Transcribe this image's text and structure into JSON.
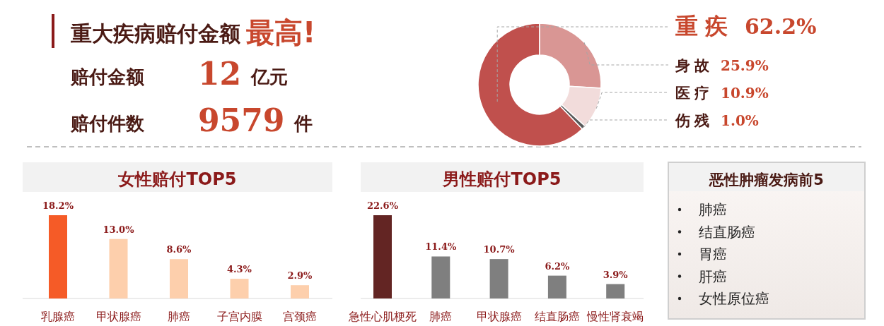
{
  "chart_data": [
    {
      "type": "other",
      "title": "重大疾病赔付金额",
      "annotations": [
        "最高!",
        "赔付金额",
        "12",
        "亿元",
        "赔付件数",
        "9579",
        "件"
      ]
    },
    {
      "type": "donut",
      "categories": [
        "重疾",
        "身故",
        "医疗",
        "伤残"
      ],
      "values": [
        62.2,
        25.9,
        10.9,
        1.0
      ],
      "colors": [
        "#c0504d",
        "#d99694",
        "#f2dcdb",
        "#595959"
      ],
      "value_labels": [
        "62.2%",
        "25.9%",
        "10.9%",
        "1.0%"
      ]
    },
    {
      "type": "bar",
      "title": "女性赔付TOP5",
      "categories": [
        "乳腺癌",
        "甲状腺癌",
        "肺癌",
        "子宫内膜",
        "宫颈癌"
      ],
      "values": [
        18.2,
        13.0,
        8.6,
        4.3,
        2.9
      ],
      "colors": [
        "#f55b27",
        "#fdcfac",
        "#fdcfac",
        "#fdcfac",
        "#fdcfac"
      ],
      "value_labels": [
        "18.2%",
        "13.0%",
        "8.6%",
        "4.3%",
        "2.9%"
      ]
    },
    {
      "type": "bar",
      "title": "男性赔付TOP5",
      "categories": [
        "急性心肌梗死",
        "肺癌",
        "甲状腺癌",
        "结直肠癌",
        "慢性肾衰竭"
      ],
      "values": [
        22.6,
        11.4,
        10.7,
        6.2,
        3.9
      ],
      "colors": [
        "#632523",
        "#7f7f7f",
        "#7f7f7f",
        "#7f7f7f",
        "#7f7f7f"
      ],
      "value_labels": [
        "22.6%",
        "11.4%",
        "10.7%",
        "6.2%",
        "3.9%"
      ]
    },
    {
      "type": "other",
      "title": "恶性肿瘤发病前5",
      "annotations": [
        "肺癌",
        "结直肠癌",
        "胃癌",
        "肝癌",
        "女性原位癌"
      ]
    }
  ]
}
